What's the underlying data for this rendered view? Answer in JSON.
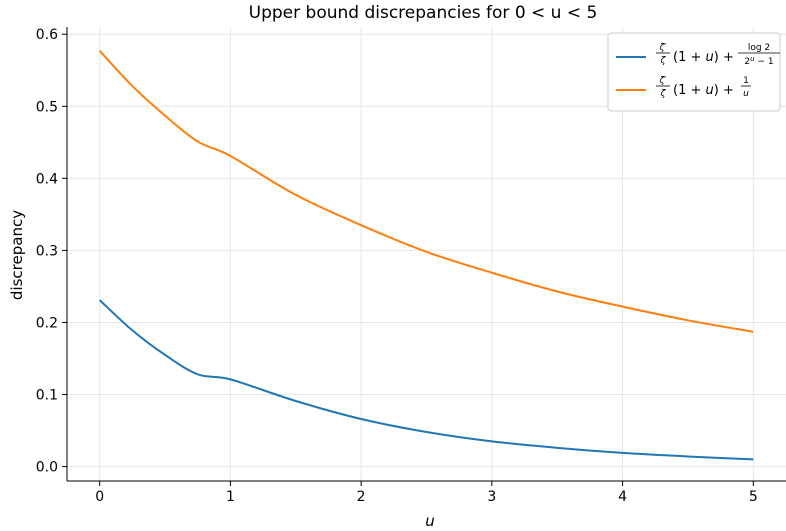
{
  "chart_data": {
    "type": "line",
    "title": "Upper bound discrepancies for 0 < u < 5",
    "xlabel": "u",
    "ylabel": "discrepancy",
    "xlim": [
      -0.25,
      5.25
    ],
    "ylim": [
      -0.02,
      0.61
    ],
    "xticks": [
      "0",
      "1",
      "2",
      "3",
      "4",
      "5"
    ],
    "yticks": [
      "0.0",
      "0.1",
      "0.2",
      "0.3",
      "0.4",
      "0.5",
      "0.6"
    ],
    "grid": true,
    "legend_position": "top-right",
    "x": [
      0,
      0.25,
      0.5,
      0.75,
      1,
      1.5,
      2,
      2.5,
      3,
      3.5,
      4,
      4.5,
      5
    ],
    "series": [
      {
        "name": "ζ′/ζ(1+u) + log 2/(2^u − 1)",
        "color": "#1f77b4",
        "values": [
          0.231,
          0.189,
          0.155,
          0.128,
          0.121,
          0.091,
          0.066,
          0.048,
          0.035,
          0.026,
          0.019,
          0.014,
          0.01
        ]
      },
      {
        "name": "ζ′/ζ(1+u) + 1/u",
        "color": "#ff7f0e",
        "values": [
          0.577,
          0.528,
          0.487,
          0.451,
          0.431,
          0.377,
          0.335,
          0.298,
          0.269,
          0.243,
          0.222,
          0.203,
          0.187
        ]
      }
    ]
  }
}
